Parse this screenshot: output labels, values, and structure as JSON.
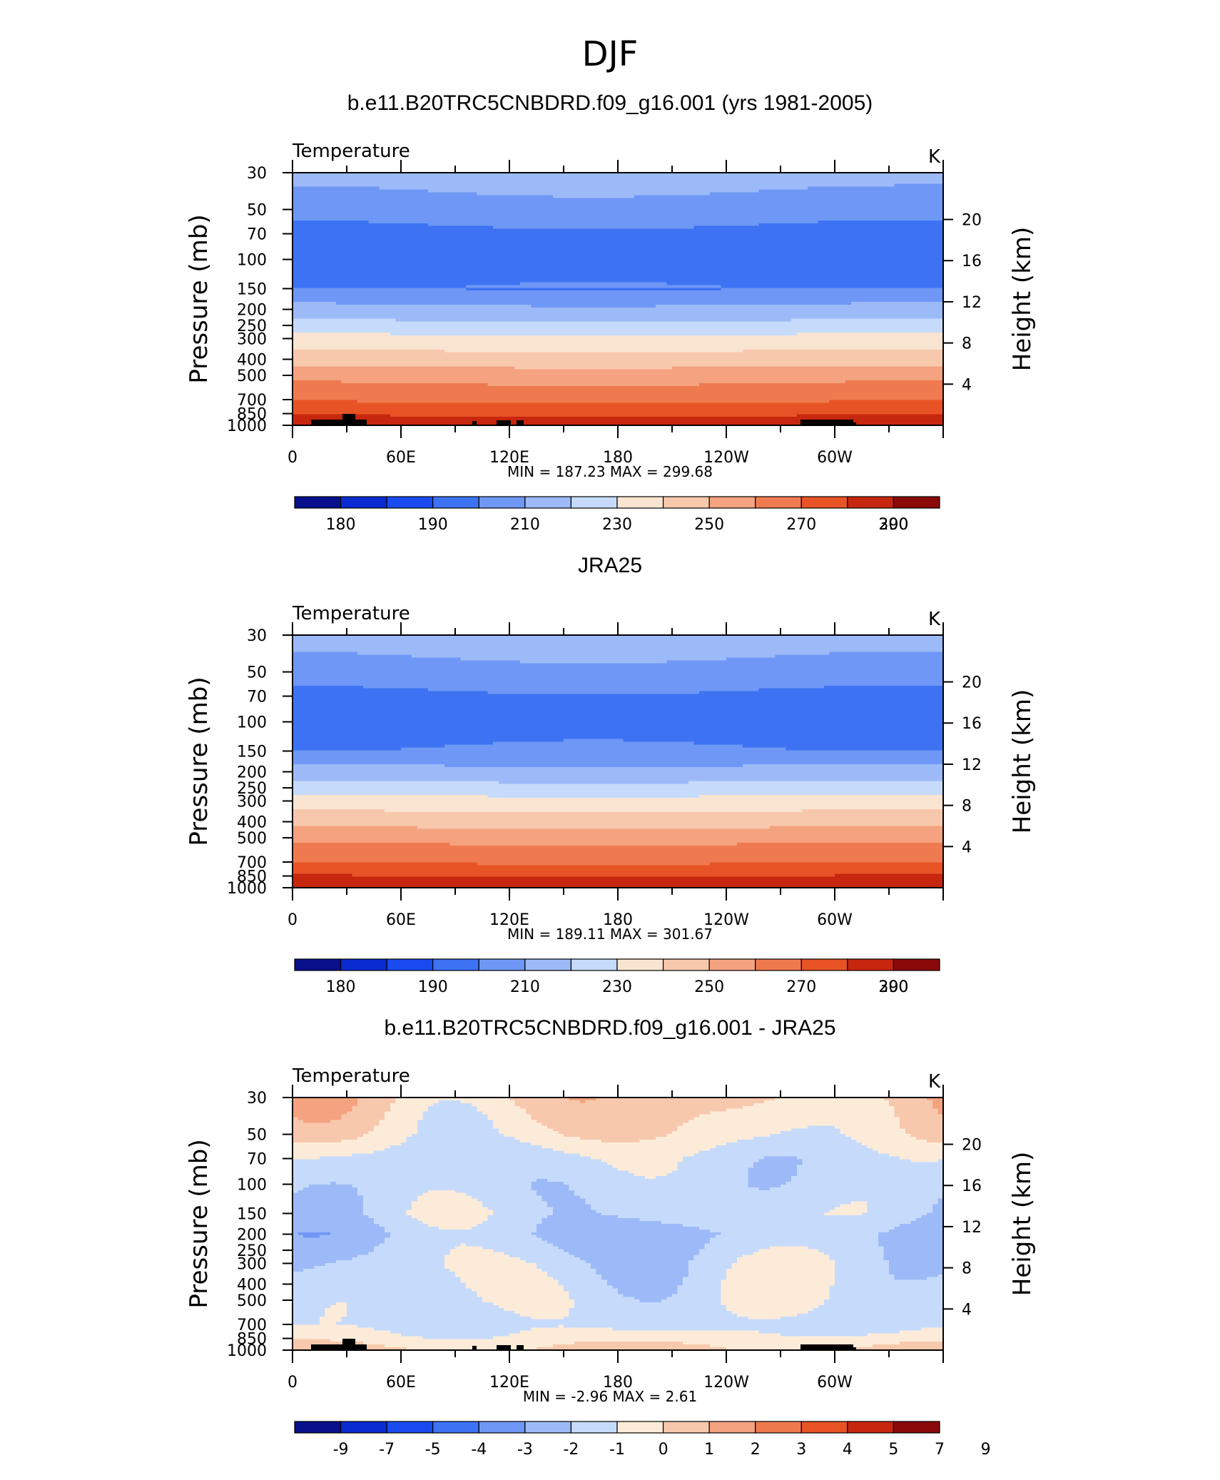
{
  "figure_title": "DJF",
  "colors": {
    "temperature_palette": [
      "#08108c",
      "#0a2bcf",
      "#1a4bf0",
      "#3d73f3",
      "#6e97f6",
      "#9dbaf8",
      "#c6dbfb",
      "#f9e4d2",
      "#f8c8ad",
      "#f4a27f",
      "#ef7a4f",
      "#e85325",
      "#c7260f",
      "#8a0a0a"
    ],
    "difference_palette": [
      "#08108c",
      "#0a2bcf",
      "#1a4bf0",
      "#3d73f3",
      "#6e97f6",
      "#9dbaf8",
      "#c6dbfb",
      "#fdebd9",
      "#f8c8ad",
      "#f4a27f",
      "#ef7a4f",
      "#e85325",
      "#c7260f",
      "#8a0a0a"
    ],
    "topography": "#000000"
  },
  "chart_data": [
    {
      "type": "heatmap",
      "title": "b.e11.B20TRC5CNBDRD.f09_g16.001 (yrs 1981-2005)",
      "subtitle_left": "Temperature",
      "units": "K",
      "ylabel": "Pressure (mb)",
      "y2label": "Height (km)",
      "x_ticks": [
        "0",
        "60E",
        "120E",
        "180",
        "120W",
        "60W"
      ],
      "y_ticks": [
        "30",
        "50",
        "70",
        "100",
        "150",
        "200",
        "250",
        "300",
        "400",
        "500",
        "700",
        "850",
        "1000"
      ],
      "y2_ticks": [
        "20",
        "16",
        "12",
        "8",
        "4"
      ],
      "min_max_text": "MIN = 187.23 MAX = 299.68",
      "min": 187.23,
      "max": 299.68,
      "colorbar_labels": [
        "180",
        "190",
        "210",
        "230",
        "250",
        "270",
        "290",
        "300"
      ],
      "contour_levels": [
        180,
        185,
        190,
        200,
        210,
        220,
        230,
        240,
        250,
        260,
        270,
        280,
        290,
        295,
        300
      ],
      "layers": [
        {
          "pressure": 30,
          "value": 215
        },
        {
          "pressure": 50,
          "value": 205
        },
        {
          "pressure": 70,
          "value": 197
        },
        {
          "pressure": 100,
          "value": 193
        },
        {
          "pressure": 150,
          "value": 200
        },
        {
          "pressure": 200,
          "value": 213
        },
        {
          "pressure": 250,
          "value": 223
        },
        {
          "pressure": 300,
          "value": 233
        },
        {
          "pressure": 400,
          "value": 245
        },
        {
          "pressure": 500,
          "value": 256
        },
        {
          "pressure": 700,
          "value": 268
        },
        {
          "pressure": 850,
          "value": 278
        },
        {
          "pressure": 1000,
          "value": 288
        }
      ]
    },
    {
      "type": "heatmap",
      "title": "JRA25",
      "subtitle_left": "Temperature",
      "units": "K",
      "ylabel": "Pressure (mb)",
      "y2label": "Height (km)",
      "x_ticks": [
        "0",
        "60E",
        "120E",
        "180",
        "120W",
        "60W"
      ],
      "y_ticks": [
        "30",
        "50",
        "70",
        "100",
        "150",
        "200",
        "250",
        "300",
        "400",
        "500",
        "700",
        "850",
        "1000"
      ],
      "y2_ticks": [
        "20",
        "16",
        "12",
        "8",
        "4"
      ],
      "min_max_text": "MIN = 189.11 MAX = 301.67",
      "min": 189.11,
      "max": 301.67,
      "colorbar_labels": [
        "180",
        "190",
        "210",
        "230",
        "250",
        "270",
        "290",
        "300"
      ],
      "contour_levels": [
        180,
        185,
        190,
        200,
        210,
        220,
        230,
        240,
        250,
        260,
        270,
        280,
        290,
        295,
        300
      ],
      "layers": [
        {
          "pressure": 30,
          "value": 216
        },
        {
          "pressure": 50,
          "value": 206
        },
        {
          "pressure": 70,
          "value": 198
        },
        {
          "pressure": 100,
          "value": 194
        },
        {
          "pressure": 150,
          "value": 201
        },
        {
          "pressure": 200,
          "value": 214
        },
        {
          "pressure": 250,
          "value": 224
        },
        {
          "pressure": 300,
          "value": 234
        },
        {
          "pressure": 400,
          "value": 246
        },
        {
          "pressure": 500,
          "value": 257
        },
        {
          "pressure": 700,
          "value": 269
        },
        {
          "pressure": 850,
          "value": 280
        },
        {
          "pressure": 1000,
          "value": 290
        }
      ]
    },
    {
      "type": "heatmap",
      "title": "b.e11.B20TRC5CNBDRD.f09_g16.001 - JRA25",
      "subtitle_left": "Temperature",
      "units": "K",
      "ylabel": "Pressure (mb)",
      "y2label": "Height (km)",
      "x_ticks": [
        "0",
        "60E",
        "120E",
        "180",
        "120W",
        "60W"
      ],
      "y_ticks": [
        "30",
        "50",
        "70",
        "100",
        "150",
        "200",
        "250",
        "300",
        "400",
        "500",
        "700",
        "850",
        "1000"
      ],
      "y2_ticks": [
        "20",
        "16",
        "12",
        "8",
        "4"
      ],
      "min_max_text": "MIN = -2.96 MAX = 2.61",
      "min": -2.96,
      "max": 2.61,
      "colorbar_labels": [
        "-9",
        "-7",
        "-5",
        "-4",
        "-3",
        "-2",
        "-1",
        "0",
        "1",
        "2",
        "3",
        "4",
        "5",
        "7",
        "9"
      ],
      "contour_levels": [
        -9,
        -7,
        -5,
        -4,
        -3,
        -2,
        -1,
        0,
        1,
        2,
        3,
        4,
        5,
        7,
        9
      ],
      "layers": [
        {
          "pressure": 30,
          "value": 0.3
        },
        {
          "pressure": 50,
          "value": -0.4
        },
        {
          "pressure": 70,
          "value": -1.4
        },
        {
          "pressure": 100,
          "value": -1.6
        },
        {
          "pressure": 150,
          "value": -1.5
        },
        {
          "pressure": 200,
          "value": -2.1
        },
        {
          "pressure": 250,
          "value": -1.8
        },
        {
          "pressure": 300,
          "value": -1.5
        },
        {
          "pressure": 400,
          "value": -1.3
        },
        {
          "pressure": 500,
          "value": -1.2
        },
        {
          "pressure": 700,
          "value": -1.4
        },
        {
          "pressure": 850,
          "value": -0.6
        },
        {
          "pressure": 1000,
          "value": 0.3
        }
      ]
    }
  ]
}
